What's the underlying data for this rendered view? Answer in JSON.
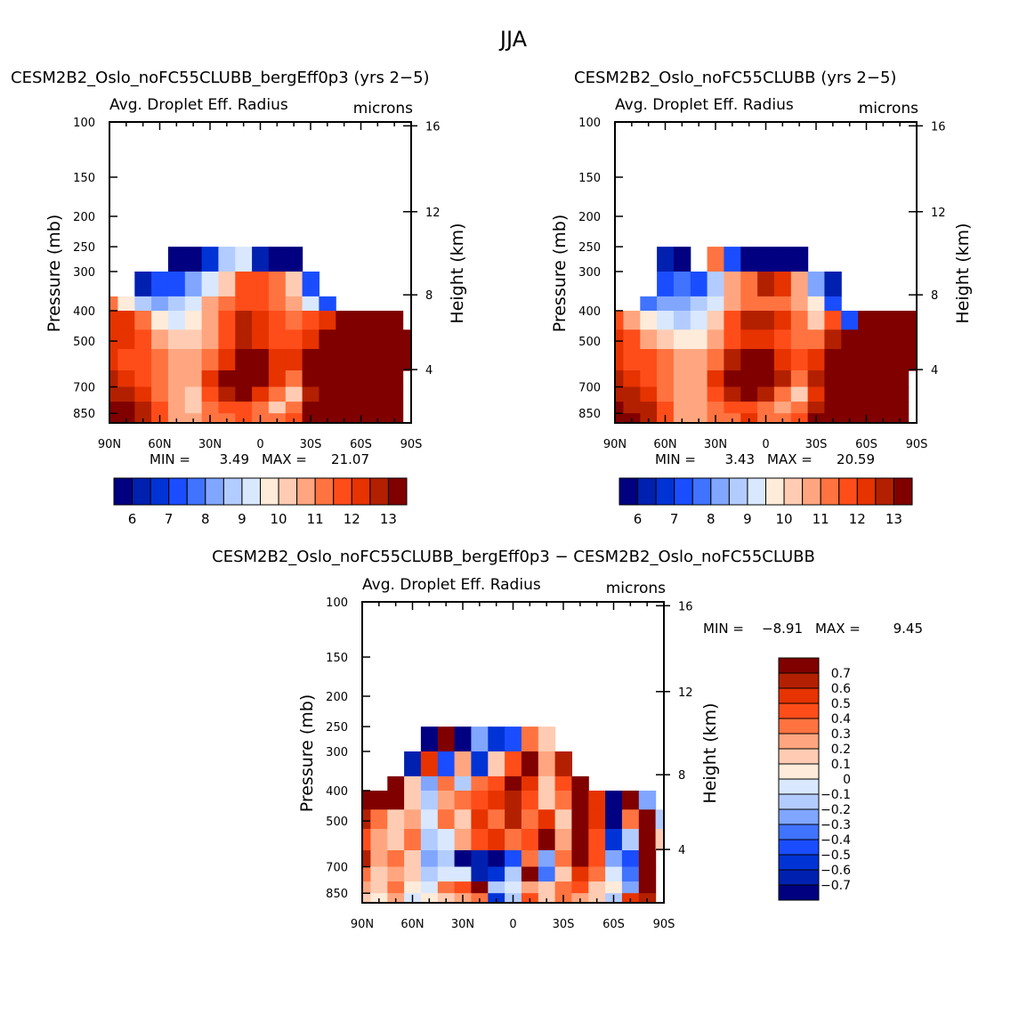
{
  "chart_data": {
    "type": "heatmap",
    "title": "JJA",
    "x_ticks": [
      "90N",
      "60N",
      "30N",
      "0",
      "30S",
      "60S",
      "90S"
    ],
    "x_tick_lats": [
      90,
      60,
      30,
      0,
      -30,
      -60,
      -90
    ],
    "p_ticks": [
      100,
      150,
      200,
      250,
      300,
      400,
      500,
      700,
      850
    ],
    "p_range": [
      100,
      912
    ],
    "height_ticks": [
      16,
      12,
      8,
      4
    ],
    "ylabel": "Pressure (mb)",
    "ylabel_right": "Height (km)",
    "lat_centers": [
      90,
      80,
      70,
      60,
      50,
      40,
      30,
      20,
      10,
      0,
      -10,
      -20,
      -30,
      -40,
      -50,
      -60,
      -70,
      -80,
      -90
    ],
    "pressure_band_edges": [
      250,
      300,
      360,
      400,
      460,
      530,
      620,
      700,
      780,
      850,
      912
    ],
    "panels": [
      {
        "title": "CESM2B2_Oslo_noFC55CLUBB_bergEff0p3 (yrs 2−5)",
        "subtitle": "Avg. Droplet Eff. Radius",
        "units": "microns",
        "min_label": "MIN =",
        "min_value": "3.49",
        "max_label": "MAX =",
        "max_value": "21.07",
        "colorbar_labels": [
          "6",
          "7",
          "8",
          "9",
          "10",
          "11",
          "12",
          "13"
        ],
        "levels": [
          6,
          6.5,
          7,
          7.5,
          8,
          8.5,
          9,
          9.5,
          10,
          10.5,
          11,
          11.5,
          12,
          12.5,
          13
        ],
        "grid": [
          [
            null,
            null,
            null,
            null,
            5.5,
            5.5,
            6.5,
            8.5,
            9,
            6,
            5.5,
            5.5,
            null,
            null,
            null,
            null,
            null,
            null,
            null
          ],
          [
            null,
            null,
            6,
            7,
            7,
            8,
            9,
            10,
            11.5,
            11.5,
            11,
            10,
            7,
            null,
            null,
            null,
            null,
            null,
            null
          ],
          [
            11,
            9.5,
            8.5,
            8,
            8.5,
            9,
            10.5,
            11,
            11.5,
            11.5,
            11,
            10.5,
            9,
            7,
            null,
            null,
            null,
            null,
            null
          ],
          [
            12,
            12,
            11,
            9.5,
            9,
            9.5,
            10.5,
            11.5,
            12.5,
            12,
            11.5,
            11,
            11.5,
            12,
            13.5,
            14,
            14,
            14,
            null
          ],
          [
            12,
            12,
            11.5,
            10.5,
            10,
            10,
            10.5,
            11.5,
            12.5,
            12,
            11.5,
            11.5,
            12,
            13.5,
            14,
            14,
            14,
            14,
            14
          ],
          [
            12,
            11.5,
            11.5,
            11,
            10.5,
            10.5,
            11,
            12,
            13.5,
            13,
            12,
            12,
            13,
            14,
            14,
            14,
            14,
            14,
            14
          ],
          [
            12.5,
            12,
            11.5,
            11,
            10.5,
            10.5,
            12,
            14,
            14,
            14,
            12,
            11,
            13,
            14,
            14,
            14,
            14,
            14,
            null
          ],
          [
            12.5,
            12.5,
            12,
            11,
            10.5,
            10,
            11.5,
            12.5,
            13,
            12,
            11,
            10,
            12.5,
            14,
            14,
            14,
            14,
            14,
            null
          ],
          [
            13,
            13,
            12.5,
            11.5,
            10.5,
            10,
            11,
            11.5,
            11.5,
            11,
            10,
            11,
            13,
            14,
            14,
            14,
            14,
            14,
            null
          ],
          [
            14,
            13.5,
            12.5,
            11.5,
            10.5,
            10.5,
            11,
            11,
            11.5,
            11,
            11,
            11.5,
            13,
            14,
            14,
            14,
            14,
            14,
            null
          ]
        ]
      },
      {
        "title": "CESM2B2_Oslo_noFC55CLUBB (yrs 2−5)",
        "subtitle": "Avg. Droplet Eff. Radius",
        "units": "microns",
        "min_label": "MIN =",
        "min_value": "3.43",
        "max_label": "MAX =",
        "max_value": "20.59",
        "colorbar_labels": [
          "6",
          "7",
          "8",
          "9",
          "10",
          "11",
          "12",
          "13"
        ],
        "levels": [
          6,
          6.5,
          7,
          7.5,
          8,
          8.5,
          9,
          9.5,
          10,
          10.5,
          11,
          11.5,
          12,
          12.5,
          13
        ],
        "grid": [
          [
            null,
            null,
            null,
            6,
            5.5,
            null,
            11,
            7,
            5.5,
            5.5,
            5.5,
            5.5,
            null,
            null,
            null,
            null,
            null,
            null,
            null
          ],
          [
            null,
            null,
            null,
            7,
            7.5,
            7,
            8.5,
            10.5,
            11,
            12.5,
            12,
            10.5,
            8,
            6,
            null,
            null,
            null,
            null,
            null
          ],
          [
            null,
            null,
            7.5,
            8,
            8,
            8.5,
            9,
            10.5,
            11,
            11,
            11,
            10.5,
            9.5,
            7,
            null,
            null,
            null,
            null,
            null
          ],
          [
            11.5,
            10.5,
            9.5,
            9,
            8.5,
            9,
            10,
            11.5,
            12.5,
            12.5,
            12,
            11,
            10,
            11.5,
            7,
            13.5,
            14,
            14,
            13.5
          ],
          [
            12,
            11.5,
            10.5,
            10,
            9.5,
            9.5,
            10.5,
            11.5,
            12,
            12,
            11.5,
            11,
            11,
            12.5,
            14,
            14,
            14,
            14,
            14
          ],
          [
            12,
            11.5,
            11.5,
            11,
            10.5,
            10.5,
            11,
            12.5,
            13.5,
            13,
            12,
            11.5,
            12,
            14,
            14,
            14,
            14,
            14,
            14
          ],
          [
            12.5,
            12,
            11.5,
            11,
            10.5,
            10.5,
            12,
            14,
            14,
            14,
            12.5,
            11,
            12.5,
            14,
            14,
            14,
            14,
            14,
            null
          ],
          [
            12.5,
            12.5,
            12,
            11,
            10.5,
            10.5,
            11.5,
            12.5,
            13,
            12.5,
            11,
            10,
            12,
            14,
            14,
            14,
            14,
            14,
            null
          ],
          [
            13,
            12.5,
            12.5,
            11.5,
            10.5,
            10.5,
            11,
            11.5,
            11.5,
            11,
            10.5,
            11,
            12.5,
            14,
            14,
            14,
            14,
            14,
            null
          ],
          [
            14,
            13.5,
            12.5,
            11.5,
            10.5,
            10.5,
            11,
            11,
            12,
            11,
            11,
            11.5,
            13,
            14,
            14,
            14,
            14,
            14,
            null
          ]
        ]
      },
      {
        "title": "CESM2B2_Oslo_noFC55CLUBB_bergEff0p3 − CESM2B2_Oslo_noFC55CLUBB",
        "subtitle": "Avg. Droplet Eff. Radius",
        "units": "microns",
        "min_label": "MIN =",
        "min_value": "−8.91",
        "max_label": "MAX =",
        "max_value": "9.45",
        "colorbar_labels": [
          "0.7",
          "0.6",
          "0.5",
          "0.4",
          "0.3",
          "0.2",
          "0.1",
          "0",
          "−0.1",
          "−0.2",
          "−0.3",
          "−0.4",
          "−0.5",
          "−0.6",
          "−0.7"
        ],
        "levels": [
          -0.7,
          -0.6,
          -0.5,
          -0.4,
          -0.3,
          -0.2,
          -0.1,
          0,
          0.1,
          0.2,
          0.3,
          0.4,
          0.5,
          0.6,
          0.7
        ],
        "grid": [
          [
            null,
            null,
            null,
            null,
            -0.8,
            0.8,
            -0.8,
            -0.3,
            -0.6,
            -0.5,
            0.3,
            0.1,
            null,
            null,
            null,
            null,
            null,
            null,
            null
          ],
          [
            null,
            null,
            null,
            -0.7,
            0.5,
            -0.5,
            0.2,
            -0.6,
            0.1,
            0.4,
            0.8,
            0.2,
            0.6,
            null,
            null,
            null,
            null,
            null,
            null
          ],
          [
            null,
            null,
            0.8,
            0.1,
            -0.3,
            0.3,
            -0.2,
            0.3,
            0.4,
            0.7,
            0.5,
            0.1,
            0.4,
            0.8,
            null,
            null,
            null,
            null,
            null
          ],
          [
            0.8,
            0.8,
            0.7,
            0.1,
            -0.2,
            0.2,
            0.3,
            0.4,
            0.5,
            0.6,
            0.4,
            0.1,
            0.3,
            0.8,
            0.5,
            -0.8,
            0.8,
            -0.3,
            null
          ],
          [
            0.6,
            0.3,
            0.1,
            0.2,
            -0.1,
            0.3,
            0.1,
            0.5,
            0.3,
            0.6,
            0.3,
            0.5,
            0.1,
            0.8,
            0.5,
            -0.8,
            0.3,
            0.9,
            -0.2
          ],
          [
            0.4,
            0.2,
            0.1,
            0.3,
            -0.2,
            -0.1,
            0.2,
            0.4,
            0.5,
            0.3,
            0.4,
            0.7,
            0.2,
            0.9,
            0.4,
            -0.6,
            -0.2,
            0.9,
            0.1
          ],
          [
            0.6,
            0.2,
            0.3,
            0.1,
            -0.3,
            -0.2,
            -0.8,
            -0.7,
            -0.8,
            -0.5,
            0.3,
            -0.3,
            0.3,
            0.8,
            0.4,
            -0.3,
            -0.5,
            0.9,
            null
          ],
          [
            0.3,
            0.1,
            0.2,
            0.1,
            -0.2,
            -0.1,
            -0.1,
            -0.7,
            -0.6,
            -0.2,
            0.7,
            -0.4,
            0.1,
            0.5,
            0.3,
            -0.1,
            -0.4,
            0.8,
            null
          ],
          [
            0.2,
            0.1,
            0.3,
            0,
            -0.1,
            0.3,
            0.4,
            0.8,
            -0.2,
            -0.1,
            0.2,
            0.1,
            0.3,
            0.4,
            0.1,
            0,
            -0.3,
            0.8,
            null
          ],
          [
            0.1,
            0,
            0.2,
            -0.1,
            0,
            0.1,
            0.2,
            0.3,
            -0.6,
            -0.2,
            0.4,
            0.1,
            0.3,
            0.2,
            0.1,
            -0.2,
            0.5,
            0.6,
            null
          ]
        ]
      }
    ],
    "colormap": [
      "#000080",
      "#0020b0",
      "#0033d6",
      "#1a4dff",
      "#4073ff",
      "#80a6ff",
      "#b3ccff",
      "#d9e8ff",
      "#ffebd9",
      "#ffccb3",
      "#ffa680",
      "#ff7340",
      "#ff4d1a",
      "#e63300",
      "#b32000",
      "#800000"
    ]
  }
}
